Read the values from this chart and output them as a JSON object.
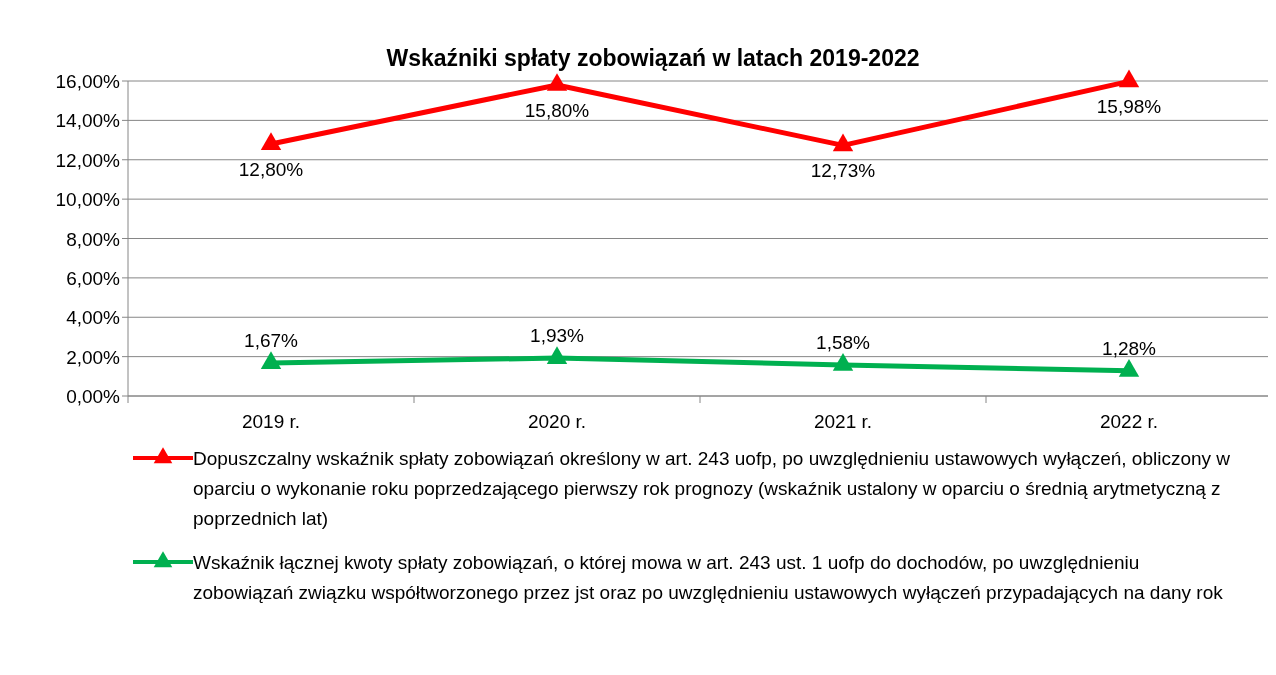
{
  "chart_data": {
    "type": "line",
    "title": "Wskaźniki spłaty zobowiązań w latach 2019-2022",
    "categories": [
      "2019 r.",
      "2020 r.",
      "2021 r.",
      "2022 r."
    ],
    "series": [
      {
        "name": "Dopuszczalny wskaźnik spłaty zobowiązań określony w art. 243 uofp, po uwzględnieniu ustawowych wyłączeń, obliczony w oparciu o wykonanie roku poprzedzającego pierwszy rok prognozy (wskaźnik ustalony w oparciu o średnią arytmetyczną z poprzednich lat)",
        "color": "#ff0000",
        "values": [
          12.8,
          15.8,
          12.73,
          15.98
        ],
        "value_labels": [
          "12,80%",
          "15,80%",
          "12,73%",
          "15,98%"
        ]
      },
      {
        "name": "Wskaźnik łącznej kwoty spłaty zobowiązań, o której mowa w art. 243 ust. 1 uofp do dochodów, po uwzględnieniu zobowiązań związku współtworzonego przez jst oraz po uwzględnieniu ustawowych wyłączeń przypadających na dany rok",
        "color": "#00b050",
        "values": [
          1.67,
          1.93,
          1.58,
          1.28
        ],
        "value_labels": [
          "1,67%",
          "1,93%",
          "1,58%",
          "1,28%"
        ]
      }
    ],
    "ylim": [
      0,
      16
    ],
    "yticks": [
      {
        "value": 0,
        "label": "0,00%"
      },
      {
        "value": 2,
        "label": "2,00%"
      },
      {
        "value": 4,
        "label": "4,00%"
      },
      {
        "value": 6,
        "label": "6,00%"
      },
      {
        "value": 8,
        "label": "8,00%"
      },
      {
        "value": 10,
        "label": "10,00%"
      },
      {
        "value": 12,
        "label": "12,00%"
      },
      {
        "value": 14,
        "label": "14,00%"
      },
      {
        "value": 16,
        "label": "16,00%"
      }
    ],
    "grid": "y",
    "legend": "bottom",
    "marker": "triangle",
    "line_style": "solid"
  }
}
